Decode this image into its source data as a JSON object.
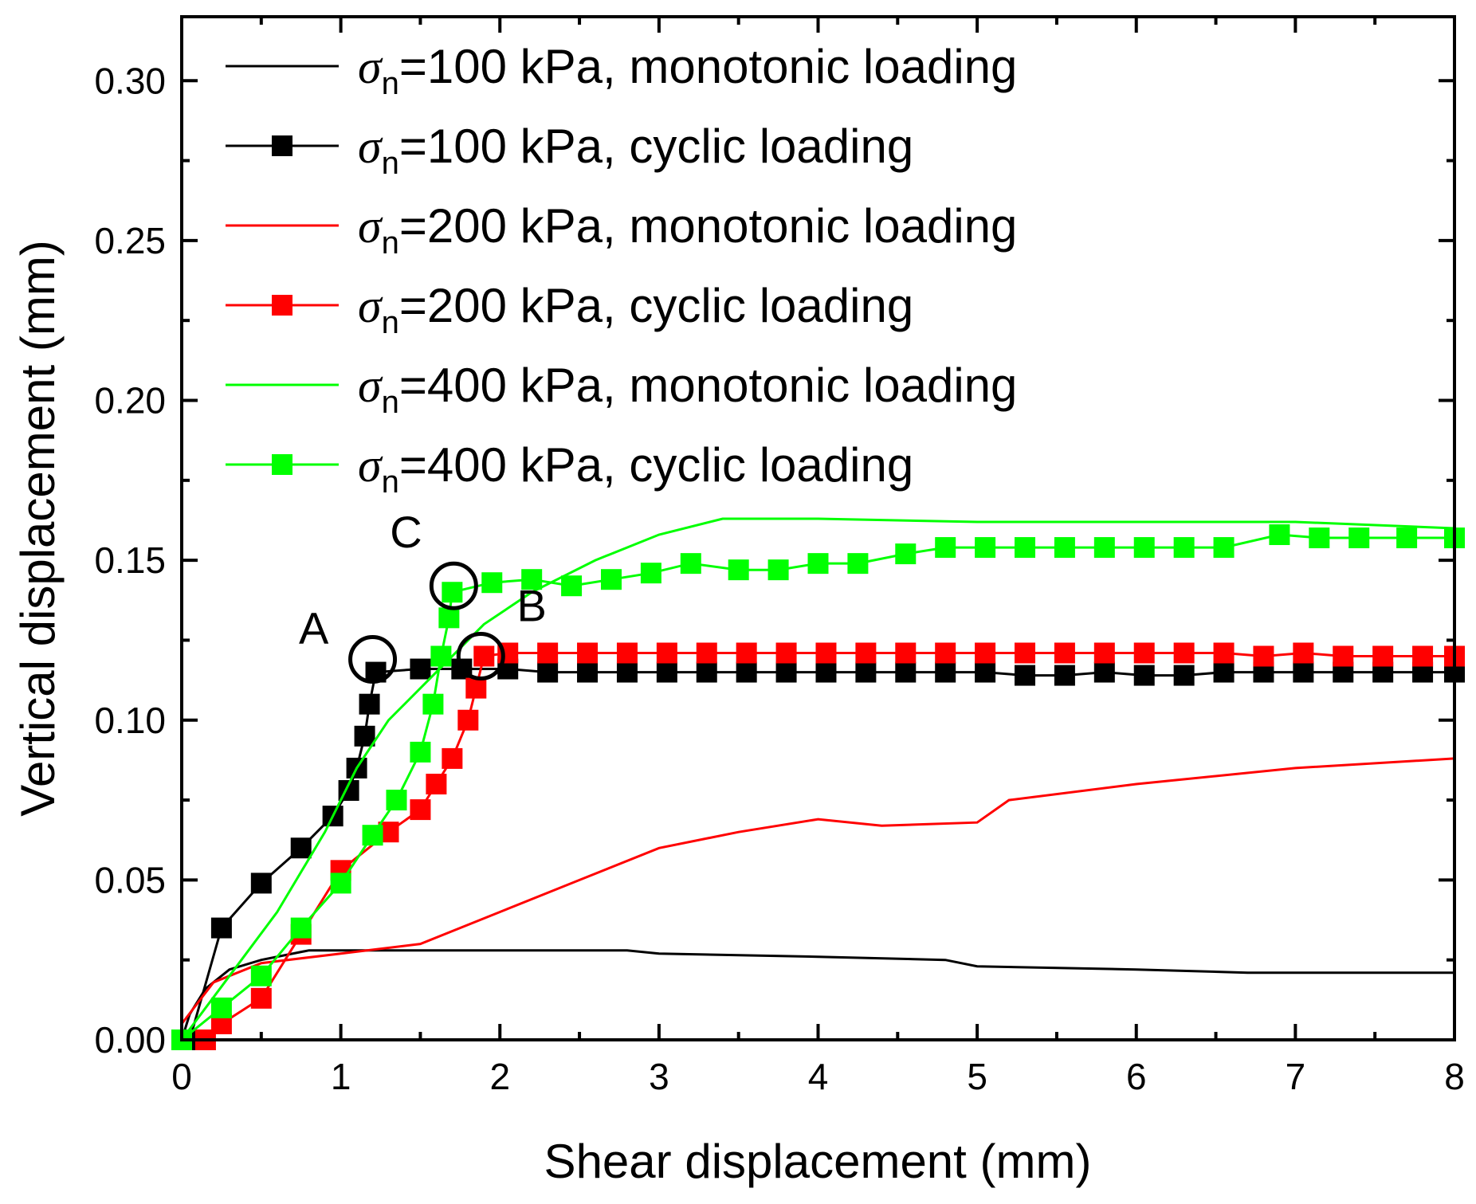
{
  "chart_data": {
    "type": "line",
    "xlabel": "Shear displacement (mm)",
    "ylabel": "Vertical displacement (mm)",
    "xlim": [
      0,
      8
    ],
    "ylim": [
      0,
      0.32
    ],
    "xticks": [
      "0",
      "1",
      "2",
      "3",
      "4",
      "5",
      "6",
      "7",
      "8"
    ],
    "yticks": [
      "0.00",
      "0.05",
      "0.10",
      "0.15",
      "0.20",
      "0.25",
      "0.30"
    ],
    "legend_position": "top-left",
    "series": [
      {
        "symbol": "σ",
        "sub": "n",
        "name": "=100 kPa, monotonic loading",
        "color": "#000000",
        "marker": false,
        "points": [
          [
            0,
            0
          ],
          [
            0.05,
            0.008
          ],
          [
            0.15,
            0.016
          ],
          [
            0.3,
            0.022
          ],
          [
            0.5,
            0.025
          ],
          [
            0.8,
            0.028
          ],
          [
            1.5,
            0.028
          ],
          [
            2.8,
            0.028
          ],
          [
            3,
            0.027
          ],
          [
            4,
            0.026
          ],
          [
            4.8,
            0.025
          ],
          [
            5,
            0.023
          ],
          [
            6,
            0.022
          ],
          [
            6.7,
            0.021
          ],
          [
            8,
            0.021
          ]
        ]
      },
      {
        "symbol": "σ",
        "sub": "n",
        "name": "=100 kPa, cyclic loading",
        "color": "#000000",
        "marker": true,
        "points": [
          [
            0.05,
            0
          ],
          [
            0.25,
            0.035
          ],
          [
            0.5,
            0.049
          ],
          [
            0.75,
            0.06
          ],
          [
            0.95,
            0.07
          ],
          [
            1.05,
            0.078
          ],
          [
            1.1,
            0.085
          ],
          [
            1.15,
            0.095
          ],
          [
            1.18,
            0.105
          ],
          [
            1.22,
            0.115
          ],
          [
            1.5,
            0.116
          ],
          [
            1.76,
            0.116
          ],
          [
            2.05,
            0.116
          ],
          [
            2.3,
            0.115
          ],
          [
            2.55,
            0.115
          ],
          [
            2.8,
            0.115
          ],
          [
            3.05,
            0.115
          ],
          [
            3.3,
            0.115
          ],
          [
            3.55,
            0.115
          ],
          [
            3.8,
            0.115
          ],
          [
            4.05,
            0.115
          ],
          [
            4.3,
            0.115
          ],
          [
            4.55,
            0.115
          ],
          [
            4.8,
            0.115
          ],
          [
            5.05,
            0.115
          ],
          [
            5.3,
            0.114
          ],
          [
            5.55,
            0.114
          ],
          [
            5.8,
            0.115
          ],
          [
            6.05,
            0.114
          ],
          [
            6.3,
            0.114
          ],
          [
            6.55,
            0.115
          ],
          [
            6.8,
            0.115
          ],
          [
            7.05,
            0.115
          ],
          [
            7.3,
            0.115
          ],
          [
            7.55,
            0.115
          ],
          [
            7.8,
            0.115
          ],
          [
            8,
            0.115
          ]
        ]
      },
      {
        "symbol": "σ",
        "sub": "n",
        "name": "=200 kPa, monotonic loading",
        "color": "#ff0000",
        "marker": false,
        "points": [
          [
            0,
            0.005
          ],
          [
            0.2,
            0.018
          ],
          [
            0.5,
            0.024
          ],
          [
            1,
            0.027
          ],
          [
            1.5,
            0.03
          ],
          [
            2,
            0.04
          ],
          [
            2.5,
            0.05
          ],
          [
            3,
            0.06
          ],
          [
            3.5,
            0.065
          ],
          [
            4,
            0.069
          ],
          [
            4.4,
            0.067
          ],
          [
            5,
            0.068
          ],
          [
            5.2,
            0.075
          ],
          [
            6,
            0.08
          ],
          [
            7,
            0.085
          ],
          [
            8,
            0.088
          ]
        ]
      },
      {
        "symbol": "σ",
        "sub": "n",
        "name": "=200 kPa, cyclic loading",
        "color": "#ff0000",
        "marker": true,
        "points": [
          [
            0.15,
            0
          ],
          [
            0.25,
            0.005
          ],
          [
            0.5,
            0.013
          ],
          [
            0.75,
            0.033
          ],
          [
            1,
            0.053
          ],
          [
            1.3,
            0.065
          ],
          [
            1.5,
            0.072
          ],
          [
            1.6,
            0.08
          ],
          [
            1.7,
            0.088
          ],
          [
            1.8,
            0.1
          ],
          [
            1.85,
            0.11
          ],
          [
            1.9,
            0.12
          ],
          [
            2.05,
            0.121
          ],
          [
            2.3,
            0.121
          ],
          [
            2.55,
            0.121
          ],
          [
            2.8,
            0.121
          ],
          [
            3.05,
            0.121
          ],
          [
            3.3,
            0.121
          ],
          [
            3.55,
            0.121
          ],
          [
            3.8,
            0.121
          ],
          [
            4.05,
            0.121
          ],
          [
            4.3,
            0.121
          ],
          [
            4.55,
            0.121
          ],
          [
            4.8,
            0.121
          ],
          [
            5.05,
            0.121
          ],
          [
            5.3,
            0.121
          ],
          [
            5.55,
            0.121
          ],
          [
            5.8,
            0.121
          ],
          [
            6.05,
            0.121
          ],
          [
            6.3,
            0.121
          ],
          [
            6.55,
            0.121
          ],
          [
            6.8,
            0.12
          ],
          [
            7.05,
            0.121
          ],
          [
            7.3,
            0.12
          ],
          [
            7.55,
            0.12
          ],
          [
            7.8,
            0.12
          ],
          [
            8,
            0.12
          ]
        ]
      },
      {
        "symbol": "σ",
        "sub": "n",
        "name": "=400 kPa, monotonic loading",
        "color": "#00ff00",
        "marker": false,
        "points": [
          [
            0,
            0
          ],
          [
            0.3,
            0.02
          ],
          [
            0.6,
            0.04
          ],
          [
            0.9,
            0.065
          ],
          [
            1.1,
            0.085
          ],
          [
            1.3,
            0.1
          ],
          [
            1.6,
            0.115
          ],
          [
            1.9,
            0.13
          ],
          [
            2.2,
            0.14
          ],
          [
            2.6,
            0.15
          ],
          [
            3,
            0.158
          ],
          [
            3.4,
            0.163
          ],
          [
            4,
            0.163
          ],
          [
            5,
            0.162
          ],
          [
            7,
            0.162
          ],
          [
            8,
            0.16
          ]
        ]
      },
      {
        "symbol": "σ",
        "sub": "n",
        "name": "=400 kPa, cyclic loading",
        "color": "#00ff00",
        "marker": true,
        "points": [
          [
            0,
            0
          ],
          [
            0.25,
            0.01
          ],
          [
            0.5,
            0.02
          ],
          [
            0.75,
            0.035
          ],
          [
            1,
            0.049
          ],
          [
            1.2,
            0.064
          ],
          [
            1.35,
            0.075
          ],
          [
            1.5,
            0.09
          ],
          [
            1.58,
            0.105
          ],
          [
            1.63,
            0.12
          ],
          [
            1.68,
            0.132
          ],
          [
            1.7,
            0.14
          ],
          [
            1.95,
            0.143
          ],
          [
            2.2,
            0.144
          ],
          [
            2.45,
            0.142
          ],
          [
            2.7,
            0.144
          ],
          [
            2.95,
            0.146
          ],
          [
            3.2,
            0.149
          ],
          [
            3.5,
            0.147
          ],
          [
            3.75,
            0.147
          ],
          [
            4,
            0.149
          ],
          [
            4.25,
            0.149
          ],
          [
            4.55,
            0.152
          ],
          [
            4.8,
            0.154
          ],
          [
            5.05,
            0.154
          ],
          [
            5.3,
            0.154
          ],
          [
            5.55,
            0.154
          ],
          [
            5.8,
            0.154
          ],
          [
            6.05,
            0.154
          ],
          [
            6.3,
            0.154
          ],
          [
            6.55,
            0.154
          ],
          [
            6.9,
            0.158
          ],
          [
            7.15,
            0.157
          ],
          [
            7.4,
            0.157
          ],
          [
            7.7,
            0.157
          ],
          [
            8,
            0.157
          ]
        ]
      }
    ],
    "annotations": [
      {
        "label": "A",
        "x": 1.2,
        "y": 0.119,
        "label_x": 0.83,
        "label_y": 0.124
      },
      {
        "label": "B",
        "x": 1.88,
        "y": 0.12,
        "label_x": 2.2,
        "label_y": 0.131
      },
      {
        "label": "C",
        "x": 1.71,
        "y": 0.142,
        "label_x": 1.41,
        "label_y": 0.154
      }
    ]
  }
}
